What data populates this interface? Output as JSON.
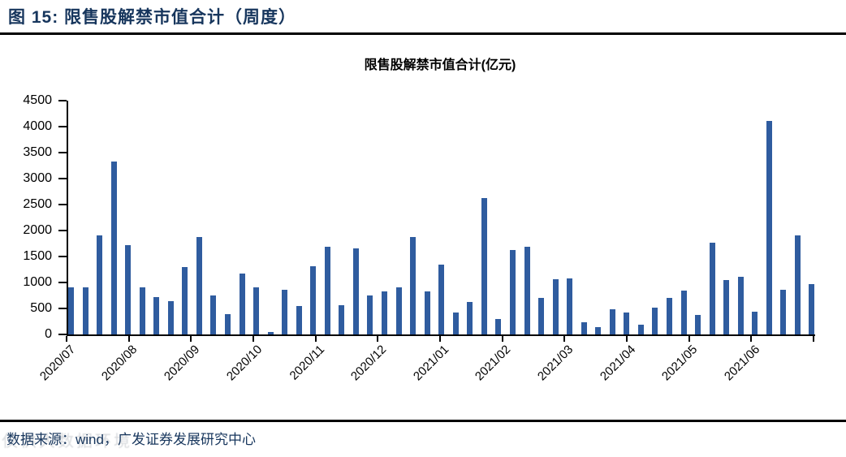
{
  "header": {
    "caption": "图 15: 限售股解禁市值合计（周度）"
  },
  "footer": {
    "source": "数据来源：wind，广发证券发展研究中心",
    "watermark": "仅供大数据环境"
  },
  "colors": {
    "bar": "#2F5C9F",
    "header_text": "#17365D",
    "axis": "#000000"
  },
  "chart_data": {
    "type": "bar",
    "title": "限售股解禁市值合计(亿元)",
    "ylabel": "亿元",
    "frequency": "weekly",
    "grid": false,
    "legend": "none",
    "ylim": [
      0,
      4500
    ],
    "ytick_step": 500,
    "yticks": [
      0,
      500,
      1000,
      1500,
      2000,
      2500,
      3000,
      3500,
      4000,
      4500
    ],
    "x_tick_labels": [
      "2020/07",
      "2020/08",
      "2020/09",
      "2020/10",
      "2020/11",
      "2020/12",
      "2021/01",
      "2021/02",
      "2021/03",
      "2021/04",
      "2021/05",
      "2021/06"
    ],
    "values": [
      900,
      900,
      1900,
      3330,
      1720,
      900,
      720,
      640,
      1290,
      1880,
      750,
      390,
      1170,
      910,
      40,
      860,
      540,
      1320,
      1680,
      570,
      1650,
      750,
      830,
      900,
      1880,
      830,
      1340,
      420,
      630,
      2630,
      300,
      1620,
      1680,
      700,
      1070,
      1080,
      230,
      140,
      480,
      420,
      180,
      510,
      710,
      850,
      370,
      1770,
      1050,
      1110,
      430,
      4110,
      860,
      1910,
      970
    ]
  }
}
